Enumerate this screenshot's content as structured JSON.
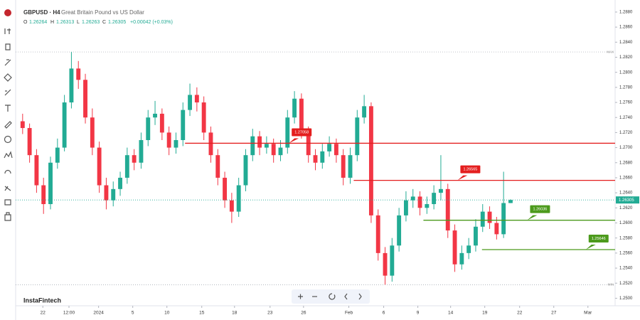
{
  "chart_data": {
    "type": "candlestick",
    "header": {
      "symbol": "GBPUSD · H4",
      "description": "Great Britain Pound vs US Dollar",
      "o_label": "O",
      "o_value": "1.26264",
      "h_label": "H",
      "h_value": "1.26313",
      "l_label": "L",
      "l_value": "1.26263",
      "c_label": "C",
      "c_value": "1.26305",
      "change": "+0.00042 (+0.03%)"
    },
    "watermark": "InstaFintech",
    "up_color": "#22ab94",
    "down_color": "#f23645",
    "xlim": [
      -1,
      85
    ],
    "ylim": [
      1.249,
      1.2896
    ],
    "grid": false,
    "xticks": [
      {
        "value": 2.9,
        "label": "22"
      },
      {
        "value": 6.65,
        "label": "12:00"
      },
      {
        "value": 10.9,
        "label": "2024"
      },
      {
        "value": 15.8,
        "label": "5"
      },
      {
        "value": 20.7,
        "label": "10"
      },
      {
        "value": 25.7,
        "label": "15"
      },
      {
        "value": 30.4,
        "label": "18"
      },
      {
        "value": 35.5,
        "label": "23"
      },
      {
        "value": 40.3,
        "label": "26"
      },
      {
        "value": 46.8,
        "label": "Feb"
      },
      {
        "value": 51.8,
        "label": "6"
      },
      {
        "value": 56.7,
        "label": "9"
      },
      {
        "value": 61.4,
        "label": "14"
      },
      {
        "value": 66.3,
        "label": "19"
      },
      {
        "value": 71.3,
        "label": "22"
      },
      {
        "value": 76.2,
        "label": "27"
      },
      {
        "value": 81.1,
        "label": "Mar"
      }
    ],
    "yticks": [
      {
        "value": 1.25,
        "label": "1.2500"
      },
      {
        "value": 1.252,
        "label": "1.2520"
      },
      {
        "value": 1.254,
        "label": "1.2540"
      },
      {
        "value": 1.256,
        "label": "1.2560"
      },
      {
        "value": 1.258,
        "label": "1.2580"
      },
      {
        "value": 1.26,
        "label": "1.2600"
      },
      {
        "value": 1.262,
        "label": "1.2620"
      },
      {
        "value": 1.264,
        "label": "1.2640"
      },
      {
        "value": 1.266,
        "label": "1.2660"
      },
      {
        "value": 1.268,
        "label": "1.2680"
      },
      {
        "value": 1.27,
        "label": "1.2700"
      },
      {
        "value": 1.272,
        "label": "1.2720"
      },
      {
        "value": 1.274,
        "label": "1.2740"
      },
      {
        "value": 1.276,
        "label": "1.2760"
      },
      {
        "value": 1.278,
        "label": "1.2780"
      },
      {
        "value": 1.28,
        "label": "1.2800"
      },
      {
        "value": 1.282,
        "label": "1.2820"
      },
      {
        "value": 1.284,
        "label": "1.2840"
      },
      {
        "value": 1.286,
        "label": "1.2860"
      },
      {
        "value": 1.288,
        "label": "1.2880"
      }
    ],
    "open": [
      1.2735,
      1.2726,
      1.269,
      1.265,
      1.2625,
      1.268,
      1.27,
      1.276,
      1.2805,
      1.279,
      1.274,
      1.27,
      1.265,
      1.263,
      1.2645,
      1.266,
      1.269,
      1.268,
      1.271,
      1.274,
      1.2745,
      1.272,
      1.27,
      1.271,
      1.275,
      1.277,
      1.276,
      1.272,
      1.269,
      1.266,
      1.263,
      1.2615,
      1.265,
      1.269,
      1.2715,
      1.27,
      1.2705,
      1.269,
      1.27,
      1.274,
      1.2765,
      1.272,
      1.269,
      1.268,
      1.2695,
      1.2705,
      1.269,
      1.266,
      1.269,
      1.274,
      1.2755,
      1.261,
      1.256,
      1.253,
      1.257,
      1.261,
      1.263,
      1.2635,
      1.262,
      1.2625,
      1.264,
      1.2645,
      1.259,
      1.2545,
      1.256,
      1.257,
      1.2595,
      1.2615,
      1.26,
      1.2585,
      1.26264
    ],
    "high": [
      1.2745,
      1.2732,
      1.2698,
      1.266,
      1.2688,
      1.2712,
      1.277,
      1.2827,
      1.2815,
      1.2798,
      1.2752,
      1.2708,
      1.266,
      1.2655,
      1.2668,
      1.27,
      1.2698,
      1.272,
      1.275,
      1.2762,
      1.2752,
      1.2728,
      1.272,
      1.276,
      1.2785,
      1.278,
      1.2768,
      1.2728,
      1.2698,
      1.2668,
      1.264,
      1.266,
      1.2698,
      1.2725,
      1.2722,
      1.2715,
      1.2712,
      1.271,
      1.275,
      1.2775,
      1.2772,
      1.2728,
      1.2698,
      1.2705,
      1.2715,
      1.2712,
      1.2698,
      1.27,
      1.275,
      1.277,
      1.276,
      1.2618,
      1.2568,
      1.258,
      1.262,
      1.2642,
      1.2645,
      1.2642,
      1.2635,
      1.265,
      1.269,
      1.2652,
      1.2598,
      1.257,
      1.258,
      1.2605,
      1.2625,
      1.2622,
      1.2608,
      1.2668,
      1.26313
    ],
    "low": [
      1.2718,
      1.268,
      1.264,
      1.2612,
      1.2618,
      1.2672,
      1.2695,
      1.2752,
      1.2778,
      1.2732,
      1.269,
      1.264,
      1.2618,
      1.2622,
      1.2636,
      1.2652,
      1.267,
      1.2672,
      1.2702,
      1.273,
      1.271,
      1.269,
      1.2692,
      1.2702,
      1.2742,
      1.2748,
      1.271,
      1.268,
      1.265,
      1.262,
      1.26,
      1.2608,
      1.2642,
      1.2682,
      1.269,
      1.2692,
      1.268,
      1.2682,
      1.2692,
      1.2732,
      1.2712,
      1.268,
      1.267,
      1.2672,
      1.2688,
      1.268,
      1.265,
      1.2652,
      1.2682,
      1.2732,
      1.26,
      1.255,
      1.2518,
      1.2522,
      1.2562,
      1.2602,
      1.262,
      1.261,
      1.2612,
      1.2618,
      1.263,
      1.258,
      1.2535,
      1.2538,
      1.2552,
      1.2562,
      1.2588,
      1.2592,
      1.2578,
      1.258,
      1.26263
    ],
    "close": [
      1.2726,
      1.269,
      1.265,
      1.2625,
      1.268,
      1.27,
      1.276,
      1.2805,
      1.279,
      1.274,
      1.27,
      1.265,
      1.263,
      1.2645,
      1.266,
      1.269,
      1.268,
      1.271,
      1.274,
      1.2745,
      1.272,
      1.27,
      1.271,
      1.275,
      1.277,
      1.276,
      1.272,
      1.269,
      1.266,
      1.263,
      1.2615,
      1.265,
      1.269,
      1.2715,
      1.27,
      1.2705,
      1.269,
      1.27,
      1.274,
      1.2765,
      1.272,
      1.269,
      1.268,
      1.2695,
      1.2705,
      1.269,
      1.266,
      1.269,
      1.274,
      1.2755,
      1.261,
      1.256,
      1.253,
      1.257,
      1.261,
      1.263,
      1.2635,
      1.262,
      1.2625,
      1.264,
      1.2645,
      1.259,
      1.2545,
      1.256,
      1.257,
      1.2595,
      1.2615,
      1.26,
      1.2585,
      1.26264,
      1.26305
    ],
    "levels": [
      {
        "value": 1.27058,
        "color": "#e41e1e",
        "x_start": 23.3
      },
      {
        "value": 1.26565,
        "color": "#e41e1e",
        "x_start": 47.5
      },
      {
        "value": 1.26036,
        "color": "#4c9a1c",
        "x_start": 57.5
      },
      {
        "value": 1.25646,
        "color": "#4c9a1c",
        "x_start": 65.9
      }
    ],
    "max_line": {
      "label": "MAX",
      "value": 1.2827
    },
    "min_line": {
      "label": "MIN",
      "value": 1.2518
    },
    "last_price": {
      "value": 1.26305,
      "color": "#22ab94"
    }
  }
}
